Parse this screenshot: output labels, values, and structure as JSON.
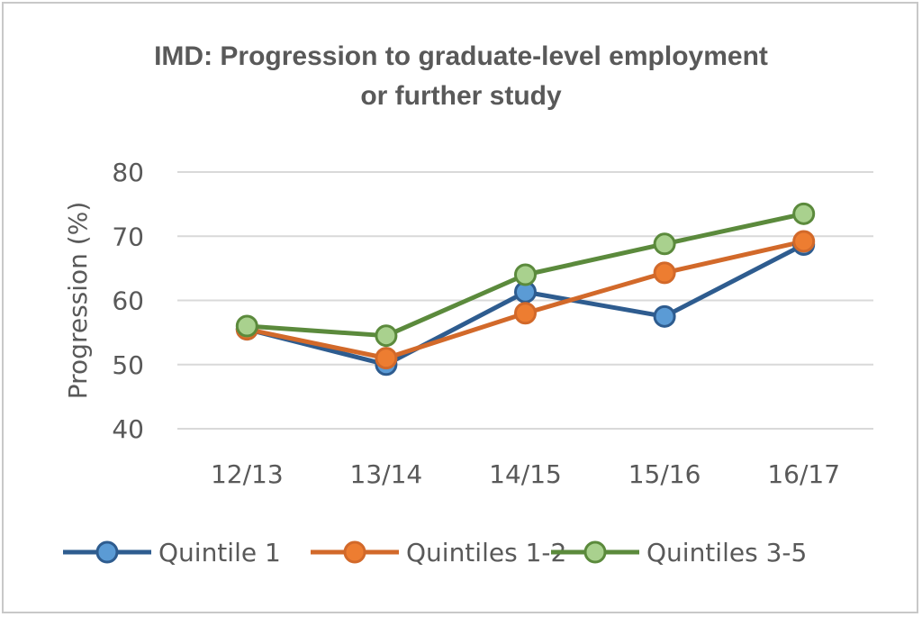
{
  "chart_data": {
    "type": "line",
    "title_line1": "IMD:  Progression to graduate-level employment",
    "title_line2": "or further study",
    "xlabel": "",
    "ylabel": "Progression (%)",
    "categories": [
      "12/13",
      "13/14",
      "14/15",
      "15/16",
      "16/17"
    ],
    "ylim": [
      40,
      80
    ],
    "yticks": [
      40,
      50,
      60,
      70,
      80
    ],
    "grid": true,
    "legend_position": "bottom",
    "series": [
      {
        "name": "Quintile 1",
        "color": "#2e5c8f",
        "marker_fill": "#5b9bd5",
        "values": [
          55.5,
          50,
          61.3,
          57.5,
          68.7
        ]
      },
      {
        "name": "Quintiles 1-2",
        "color": "#d2692a",
        "marker_fill": "#ed7d31",
        "values": [
          55.5,
          51,
          58,
          64.3,
          69.2
        ]
      },
      {
        "name": "Quintiles 3-5",
        "color": "#5b8a3c",
        "marker_fill": "#a9d18e",
        "values": [
          56,
          54.5,
          64,
          68.8,
          73.5
        ]
      }
    ]
  }
}
